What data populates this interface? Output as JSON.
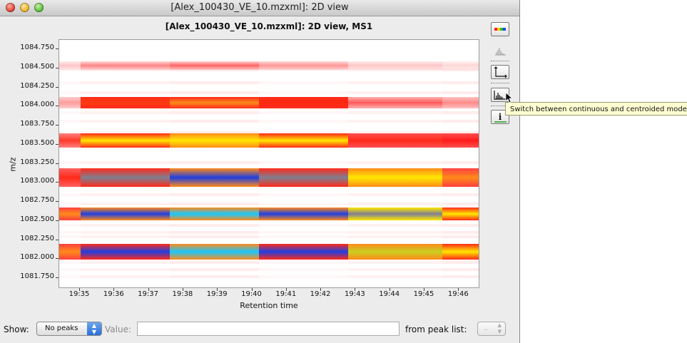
{
  "window": {
    "title": "[Alex_100430_VE_10.mzxml]: 2D view"
  },
  "plot": {
    "title": "[Alex_100430_VE_10.mzxml]: 2D view, MS1",
    "x_label": "Retention time",
    "y_label": "m/z",
    "y_ticks": [
      "1084.750",
      "1084.500",
      "1084.250",
      "1084.000",
      "1083.750",
      "1083.500",
      "1083.250",
      "1083.000",
      "1082.750",
      "1082.500",
      "1082.250",
      "1082.000",
      "1081.750"
    ],
    "x_ticks": [
      "19:35",
      "19:36",
      "19:37",
      "19:38",
      "19:39",
      "19:40",
      "19:41",
      "19:42",
      "19:43",
      "19:44",
      "19:45",
      "19:46"
    ]
  },
  "toolbar": {
    "buttons": [
      {
        "name": "color-palette-button",
        "icon": "palette-icon"
      },
      {
        "name": "show-spectrum-button",
        "icon": "spectrum-icon"
      },
      {
        "name": "axes-toggle-button",
        "icon": "axes-icon"
      },
      {
        "name": "centroid-toggle-button",
        "icon": "centroid-icon"
      },
      {
        "name": "info-button",
        "icon": "info-icon"
      }
    ],
    "info_glyph": "i",
    "tooltip": "Switch between continuous and centroided mode"
  },
  "bottom": {
    "show_label": "Show:",
    "show_value": "No peaks",
    "value_label": "Value:",
    "value_text": "",
    "peaklist_label": "from peak list:",
    "peaklist_value": ".."
  },
  "colors": {
    "low": "#ffe6e6",
    "red": "#ff2a1a",
    "orange": "#ff8a1a",
    "yellow": "#ffe800",
    "blue": "#1f3fe0",
    "cyan": "#18c8ff",
    "gray": "#7f7f90"
  }
}
